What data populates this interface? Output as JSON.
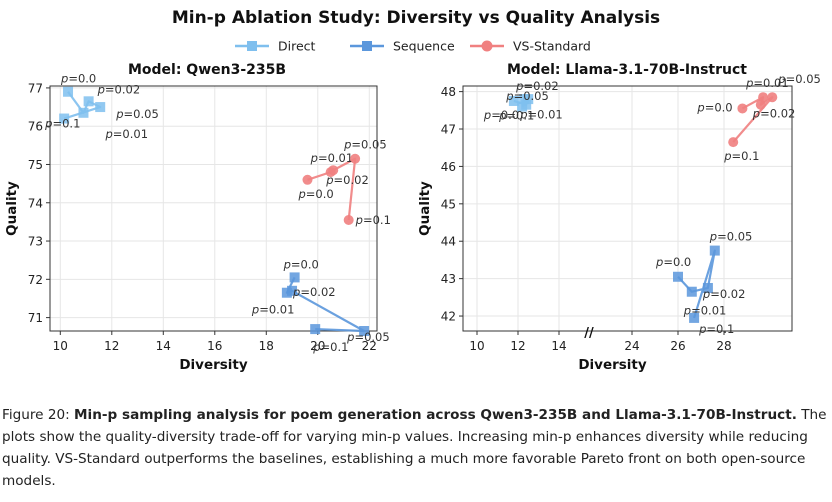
{
  "suptitle": "Min-p Ablation Study: Diversity vs Quality Analysis",
  "legend": [
    {
      "name": "Direct",
      "color": "#7fbfee",
      "marker": "square"
    },
    {
      "name": "Sequence",
      "color": "#5b97dc",
      "marker": "square"
    },
    {
      "name": "VS-Standard",
      "color": "#f08080",
      "marker": "circle"
    }
  ],
  "chart_data": [
    {
      "type": "line",
      "title": "Model: Qwen3-235B",
      "xlabel": "Diversity",
      "ylabel": "Quality",
      "xlim": [
        9.6,
        22.3
      ],
      "ylim": [
        70.65,
        77.05
      ],
      "xticks": [
        10,
        12,
        14,
        16,
        18,
        20,
        22
      ],
      "yticks": [
        71,
        72,
        73,
        74,
        75,
        76,
        77
      ],
      "grid": true,
      "series": [
        {
          "name": "Direct",
          "points": [
            {
              "label": "p=0.0",
              "x": 10.3,
              "y": 76.9
            },
            {
              "label": "p=0.01",
              "x": 10.9,
              "y": 76.35
            },
            {
              "label": "p=0.02",
              "x": 11.1,
              "y": 76.65
            },
            {
              "label": "p=0.05",
              "x": 11.55,
              "y": 76.5
            },
            {
              "label": "p=0.1",
              "x": 10.15,
              "y": 76.2
            }
          ]
        },
        {
          "name": "Sequence",
          "points": [
            {
              "label": "p=0.0",
              "x": 19.1,
              "y": 72.05
            },
            {
              "label": "p=0.01",
              "x": 18.8,
              "y": 71.65
            },
            {
              "label": "p=0.02",
              "x": 19.0,
              "y": 71.7
            },
            {
              "label": "p=0.05",
              "x": 21.8,
              "y": 70.65
            },
            {
              "label": "p=0.1",
              "x": 19.9,
              "y": 70.7
            }
          ]
        },
        {
          "name": "VS-Standard",
          "points": [
            {
              "label": "p=0.0",
              "x": 19.6,
              "y": 74.6
            },
            {
              "label": "p=0.01",
              "x": 20.5,
              "y": 74.8
            },
            {
              "label": "p=0.02",
              "x": 20.6,
              "y": 74.85
            },
            {
              "label": "p=0.05",
              "x": 21.45,
              "y": 75.15
            },
            {
              "label": "p=0.1",
              "x": 21.2,
              "y": 73.55
            }
          ]
        }
      ]
    },
    {
      "type": "line",
      "title": "Model: Llama-3.1-70B-Instruct",
      "xlabel": "Diversity",
      "ylabel": "Quality",
      "x_axis_break": "//",
      "xticks": [
        10,
        12,
        14,
        24,
        26,
        28
      ],
      "yticks": [
        42,
        43,
        44,
        45,
        46,
        47,
        48
      ],
      "ylim": [
        41.6,
        48.15
      ],
      "grid": true,
      "series": [
        {
          "name": "Direct",
          "points": [
            {
              "label": "p=0.0",
              "x": 11.8,
              "y": 47.75
            },
            {
              "label": "p=0.01",
              "x": 12.4,
              "y": 47.65
            },
            {
              "label": "p=0.02",
              "x": 12.3,
              "y": 47.8
            },
            {
              "label": "p=0.05",
              "x": 12.5,
              "y": 47.8
            },
            {
              "label": "p=0.1",
              "x": 12.2,
              "y": 47.6
            }
          ]
        },
        {
          "name": "Sequence",
          "points": [
            {
              "label": "p=0.0",
              "x": 26.0,
              "y": 43.05
            },
            {
              "label": "p=0.01",
              "x": 26.6,
              "y": 42.65
            },
            {
              "label": "p=0.02",
              "x": 27.3,
              "y": 42.75
            },
            {
              "label": "p=0.05",
              "x": 27.6,
              "y": 43.75
            },
            {
              "label": "p=0.1",
              "x": 26.7,
              "y": 41.95
            }
          ]
        },
        {
          "name": "VS-Standard",
          "points": [
            {
              "label": "p=0.0",
              "x": 28.8,
              "y": 47.55
            },
            {
              "label": "p=0.01",
              "x": 29.7,
              "y": 47.85
            },
            {
              "label": "p=0.02",
              "x": 29.6,
              "y": 47.65
            },
            {
              "label": "p=0.05",
              "x": 30.1,
              "y": 47.85
            },
            {
              "label": "p=0.1",
              "x": 28.4,
              "y": 46.65
            }
          ]
        }
      ]
    }
  ],
  "caption": {
    "prefix": "Figure 20: ",
    "bold": "Min-p sampling analysis for poem generation across Qwen3-235B and Llama-3.1-70B-Instruct.",
    "body": " The plots show the quality-diversity trade-off for varying min-p values. Increasing min-p enhances diversity while reducing quality. VS-Standard outperforms the baselines, establishing a much more favorable Pareto front on both open-source models."
  }
}
